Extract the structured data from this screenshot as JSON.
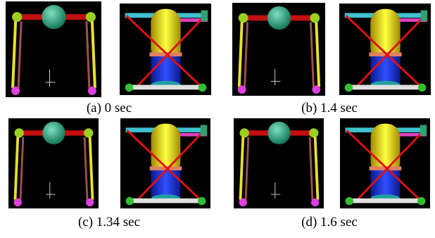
{
  "panels": [
    {
      "caption": "(a) 0 sec"
    },
    {
      "caption": "(b) 1.4 sec"
    },
    {
      "caption": "(c) 1.34 sec"
    },
    {
      "caption": "(d) 1.6 sec"
    }
  ]
}
